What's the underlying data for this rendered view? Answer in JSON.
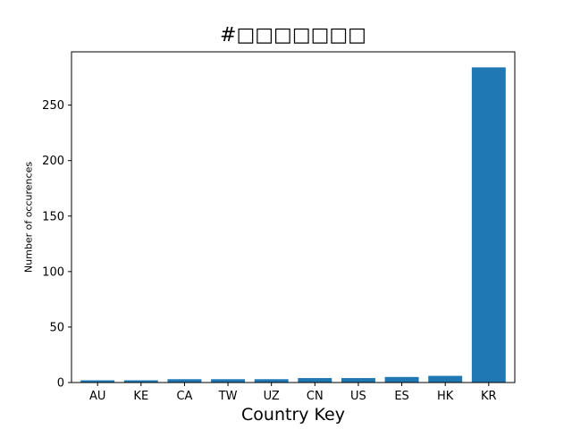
{
  "chart_data": {
    "type": "bar",
    "title": "#□□□□□□□",
    "xlabel": "Country Key",
    "ylabel": "Number of occurences",
    "categories": [
      "AU",
      "KE",
      "CA",
      "TW",
      "UZ",
      "CN",
      "US",
      "ES",
      "HK",
      "KR"
    ],
    "values": [
      2,
      2,
      3,
      3,
      3,
      4,
      4,
      5,
      6,
      284
    ],
    "ylim": [
      0,
      298
    ],
    "yticks": [
      0,
      50,
      100,
      150,
      200,
      250
    ],
    "bar_color": "#1f77b4",
    "grid": false,
    "legend": "none"
  }
}
